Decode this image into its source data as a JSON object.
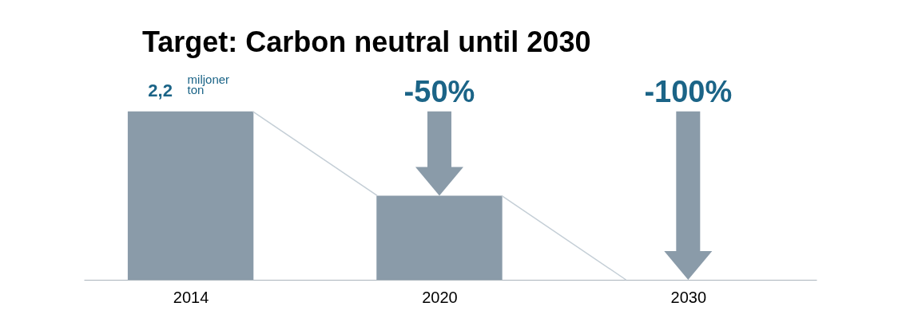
{
  "chart_data": {
    "type": "bar",
    "title": "Target: Carbon neutral until 2030",
    "categories": [
      "2014",
      "2020",
      "2030"
    ],
    "values": [
      2.2,
      1.1,
      0
    ],
    "color": "#8a9ba9",
    "value_labels": [
      "2,2 miljoner ton",
      null,
      null
    ],
    "annotations": [
      {
        "text": "-50%",
        "x": "2020",
        "y": 1.1
      },
      "-100%"
    ]
  }
}
